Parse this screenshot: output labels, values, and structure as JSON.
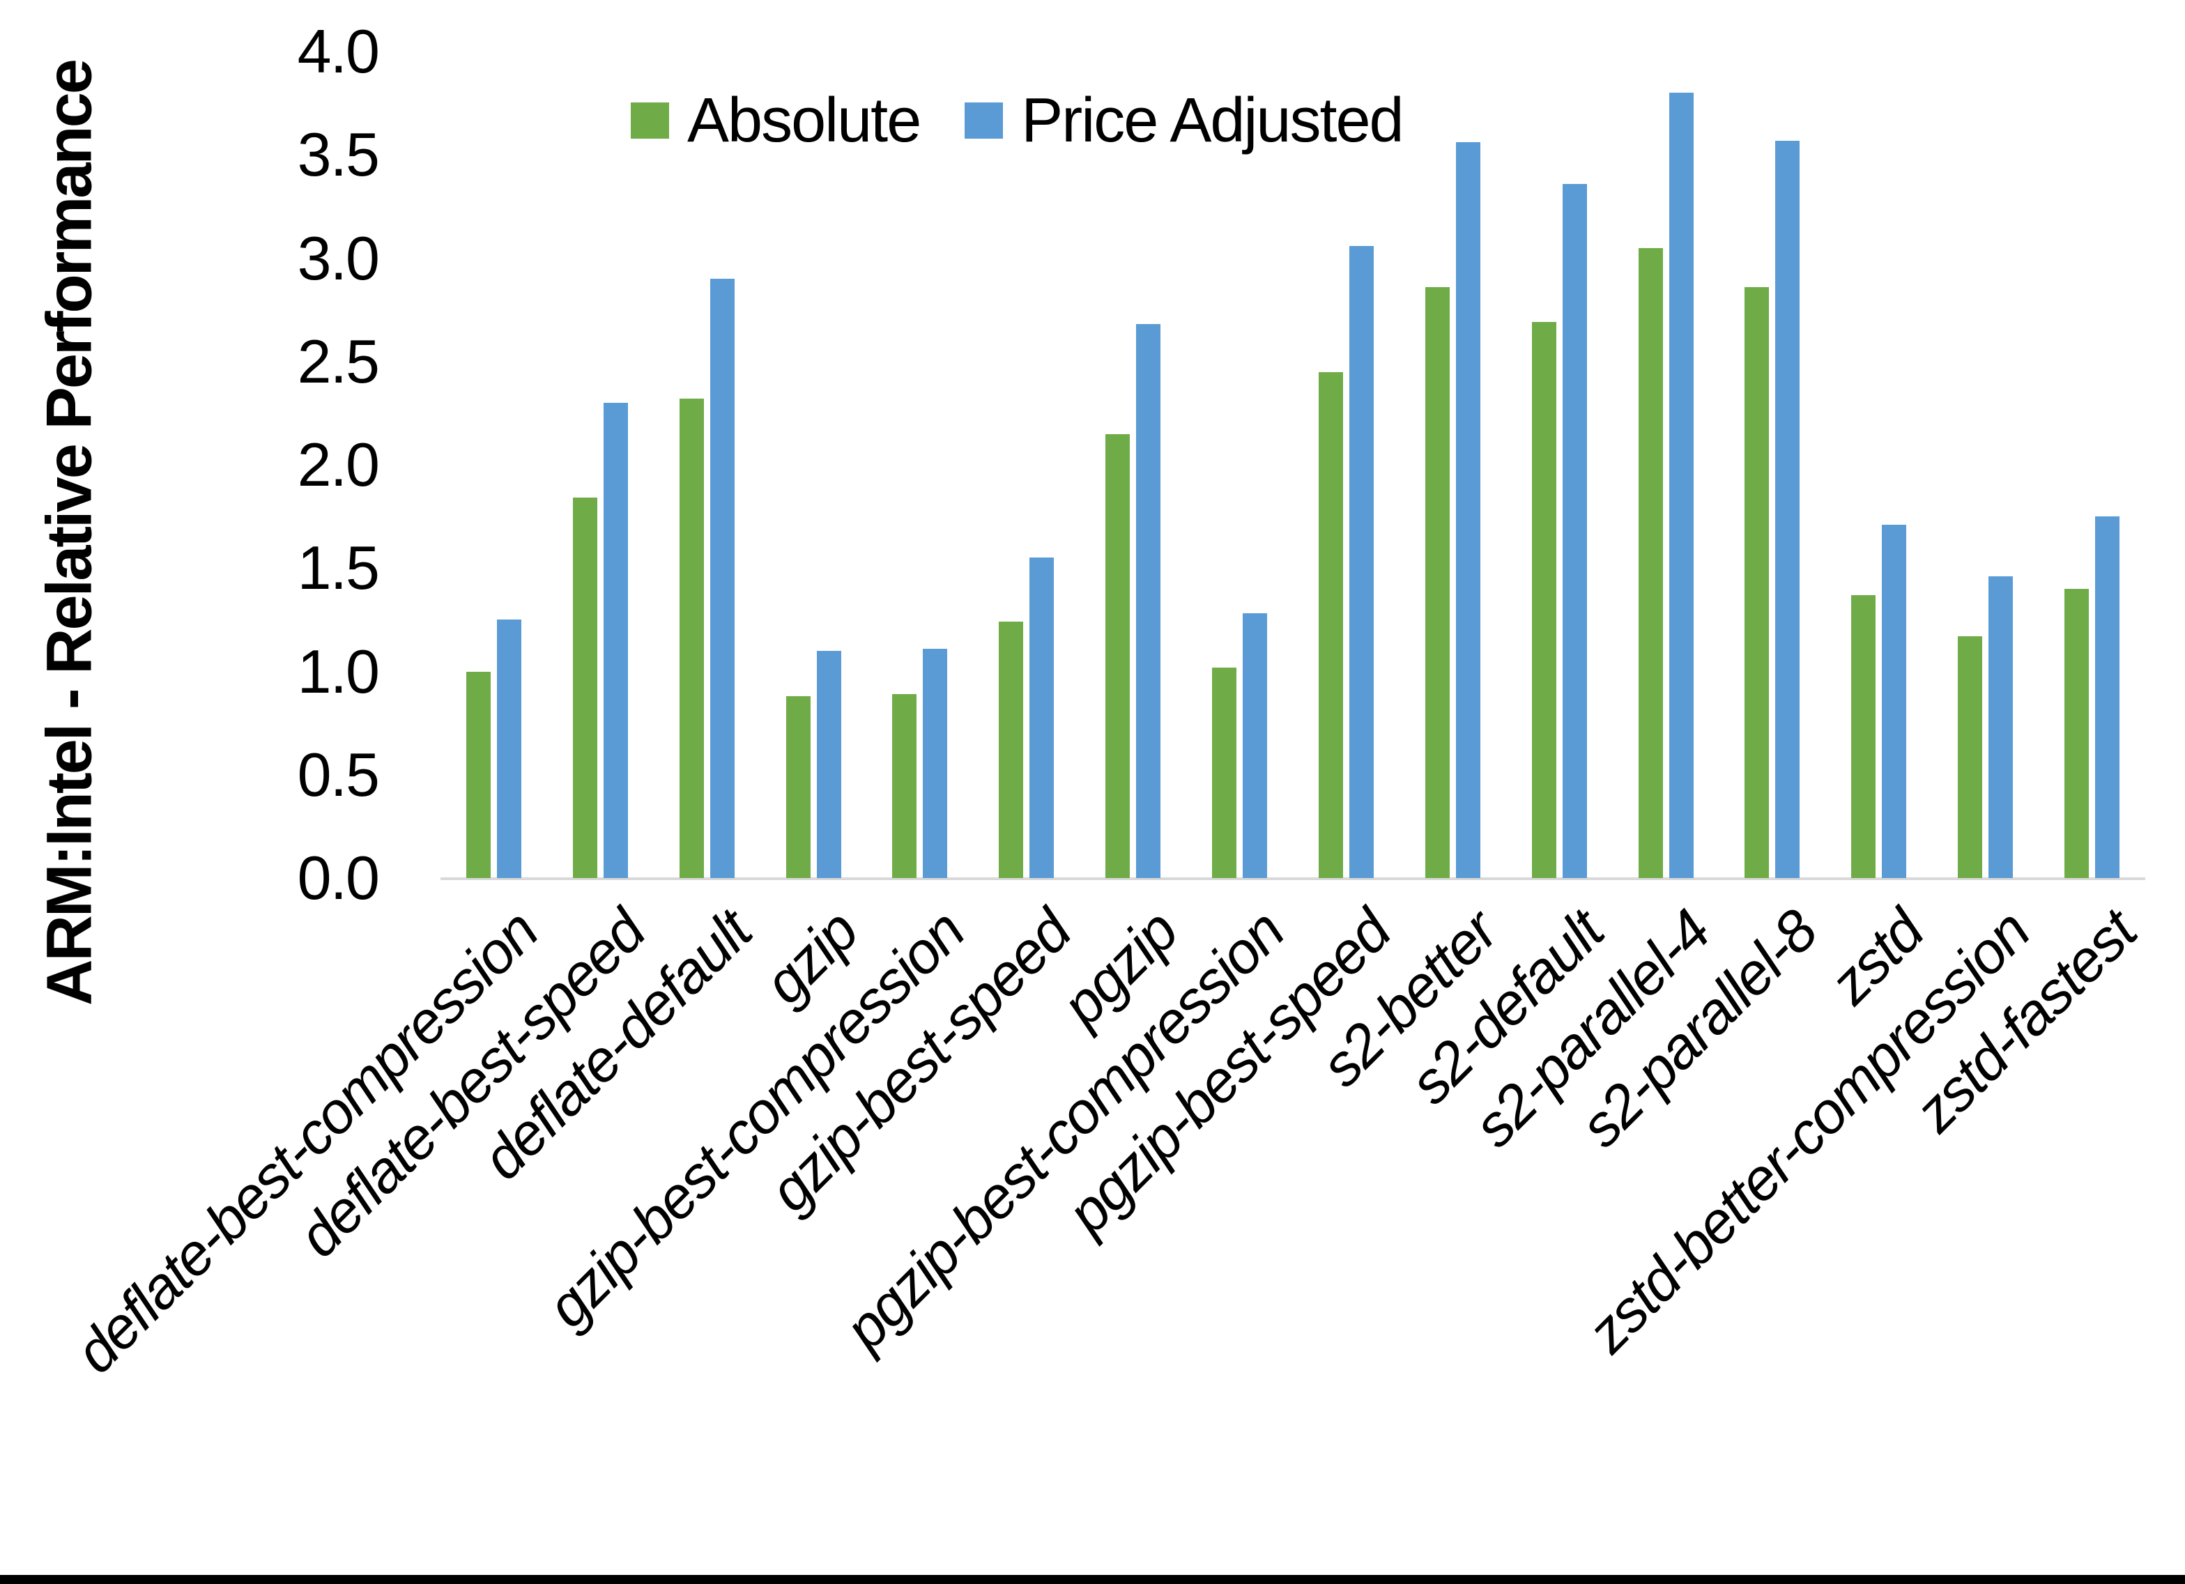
{
  "chart_data": {
    "type": "bar",
    "categories": [
      "deflate-best-compression",
      "deflate-best-speed",
      "deflate-default",
      "gzip",
      "gzip-best-compression",
      "gzip-best-speed",
      "pgzip",
      "pgzip-best-compression",
      "pgzip-best-speed",
      "s2-better",
      "s2-default",
      "s2-parallel-4",
      "s2-parallel-8",
      "zstd",
      "zstd-better-compression",
      "zstd-fastest"
    ],
    "series": [
      {
        "name": "Absolute",
        "color": "#6fac47",
        "values": [
          1.0,
          1.84,
          2.32,
          0.88,
          0.89,
          1.24,
          2.15,
          1.02,
          2.45,
          2.86,
          2.69,
          3.05,
          2.86,
          1.37,
          1.17,
          1.4
        ]
      },
      {
        "name": "Price Adjusted",
        "color": "#5a9bd5",
        "values": [
          1.25,
          2.3,
          2.9,
          1.1,
          1.11,
          1.55,
          2.68,
          1.28,
          3.06,
          3.56,
          3.36,
          3.8,
          3.57,
          1.71,
          1.46,
          1.75
        ]
      }
    ],
    "title": "",
    "xlabel": "",
    "ylabel": "ARM:Intel - Relative Performance",
    "ylim": [
      0,
      4
    ],
    "yticks": [
      0,
      0.5,
      1,
      1.5,
      2,
      2.5,
      3,
      3.5,
      4
    ],
    "ytick_labels": [
      "0.0",
      "0.5",
      "1.0",
      "1.5",
      "2.0",
      "2.5",
      "3.0",
      "3.5",
      "4.0"
    ],
    "grid": false,
    "legend_position": "top-center",
    "axis_line_color": "#d9d9d9"
  }
}
